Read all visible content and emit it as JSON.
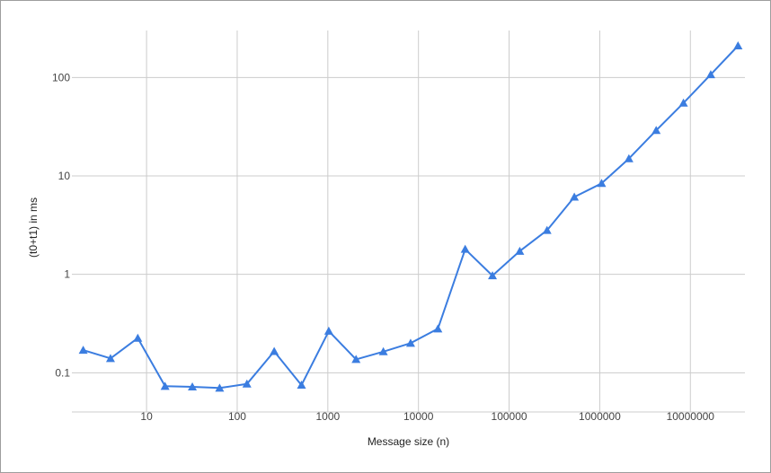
{
  "chart_data": {
    "type": "line",
    "title": "",
    "xlabel": "Message size (n)",
    "ylabel": "(t0+t1) in ms",
    "x_scale": "log",
    "y_scale": "log",
    "xlim": [
      1.5,
      40000000
    ],
    "ylim": [
      0.04,
      300
    ],
    "x_tick_labels": [
      "10",
      "100",
      "1000",
      "10000",
      "100000",
      "1000000",
      "10000000"
    ],
    "x_ticks": [
      10,
      100,
      1000,
      10000,
      100000,
      1000000,
      10000000
    ],
    "y_tick_labels": [
      "0.1",
      "1",
      "10",
      "100"
    ],
    "y_ticks": [
      0.1,
      1,
      10,
      100
    ],
    "grid": true,
    "legend": "none",
    "series": [
      {
        "color": "#3b7de0",
        "marker": "triangle",
        "x": [
          2,
          4,
          8,
          16,
          32,
          64,
          128,
          256,
          512,
          1024,
          2048,
          4096,
          8192,
          16384,
          32768,
          65536,
          131072,
          262144,
          524288,
          1048576,
          2097152,
          4194304,
          8388608,
          16777216,
          33554432
        ],
        "y": [
          0.17,
          0.14,
          0.225,
          0.073,
          0.072,
          0.07,
          0.077,
          0.165,
          0.075,
          0.265,
          0.137,
          0.164,
          0.2,
          0.28,
          1.8,
          0.97,
          1.72,
          2.8,
          6.1,
          8.4,
          15.0,
          29.0,
          55.0,
          107.0,
          210.0
        ]
      }
    ]
  },
  "colors": {
    "grid": "#cccccc",
    "line": "#3b7de0"
  }
}
